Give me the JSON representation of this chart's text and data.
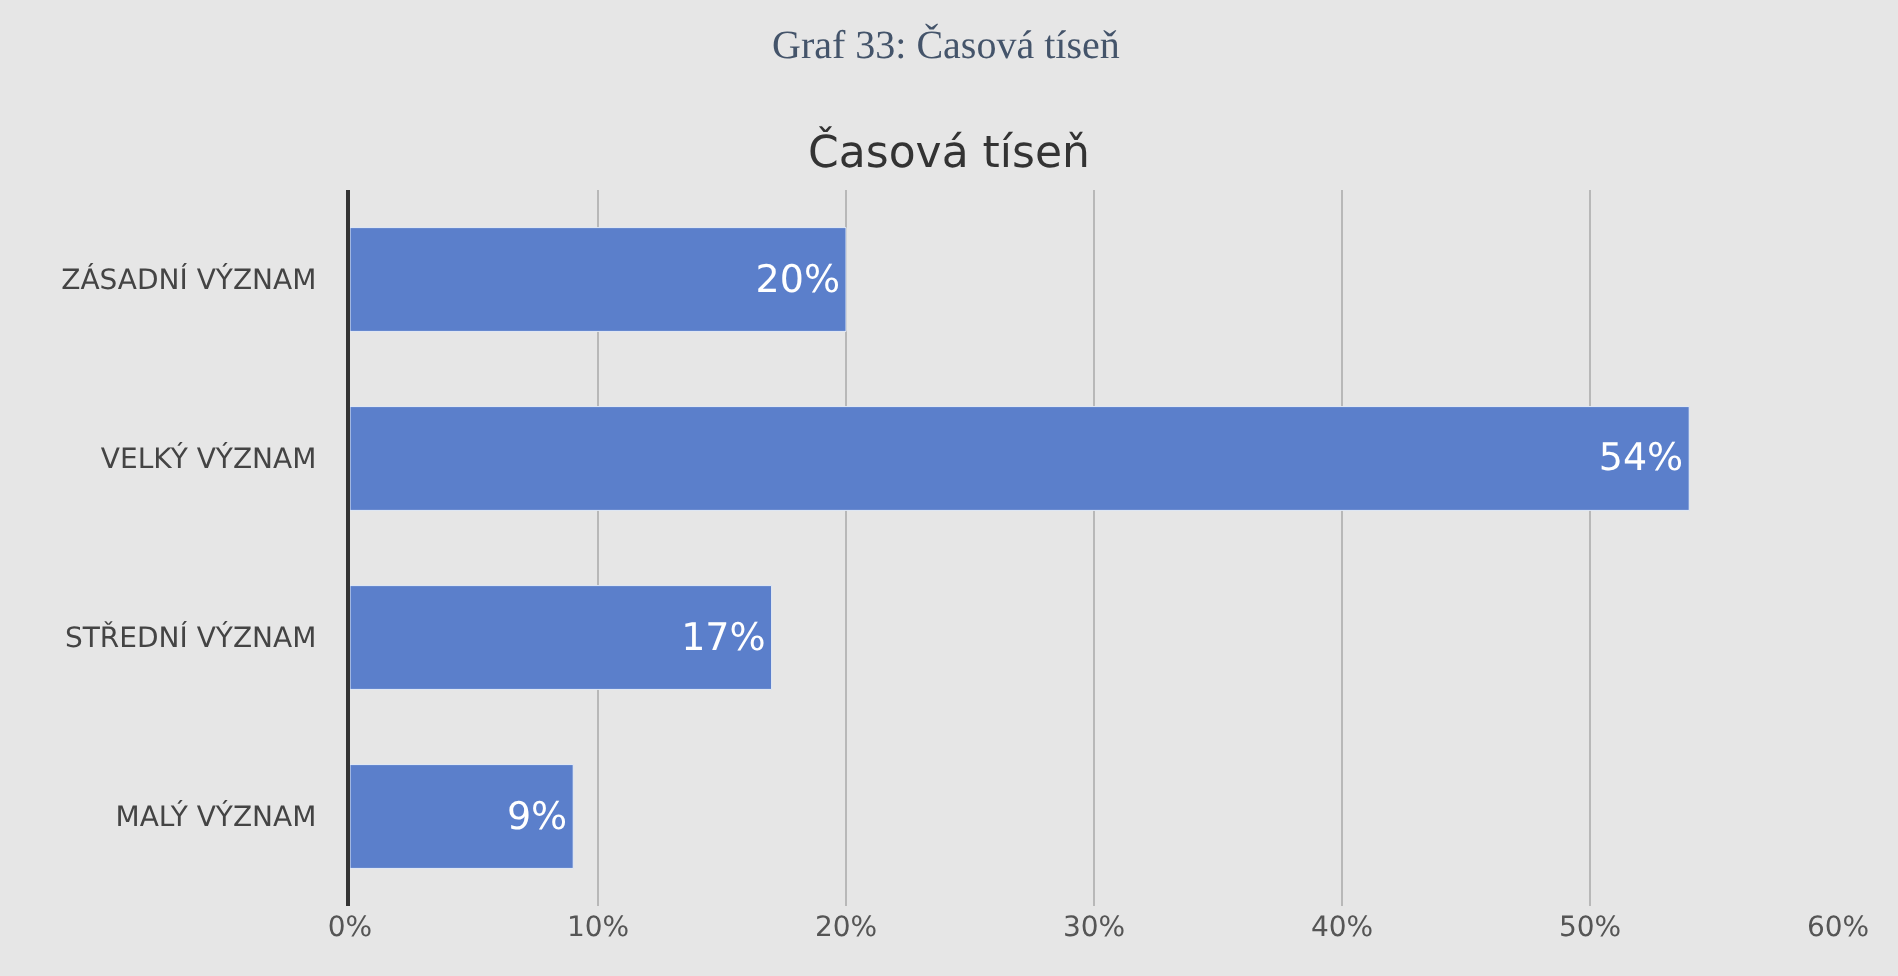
{
  "chart_data": {
    "type": "bar",
    "orientation": "horizontal",
    "title": "Časová tíseň",
    "annotations": [
      "Graf 33: Časová tíseň"
    ],
    "categories": [
      "ZÁSADNÍ VÝZNAM",
      "VELKÝ VÝZNAM",
      "STŘEDNÍ VÝZNAM",
      "MALÝ VÝZNAM"
    ],
    "values": [
      20,
      54,
      17,
      9
    ],
    "color": "#5b7fcb",
    "value_labels": [
      "20%",
      "54%",
      "17%",
      "9%"
    ],
    "xlim": [
      0,
      60
    ],
    "xticks": [
      {
        "value": 0,
        "label": "0%"
      },
      {
        "value": 10,
        "label": "10%"
      },
      {
        "value": 20,
        "label": "20%"
      },
      {
        "value": 30,
        "label": "30%"
      },
      {
        "value": 40,
        "label": "40%"
      },
      {
        "value": 50,
        "label": "50%"
      },
      {
        "value": 60,
        "label": "60%"
      }
    ],
    "grid": "x",
    "legend": false
  }
}
